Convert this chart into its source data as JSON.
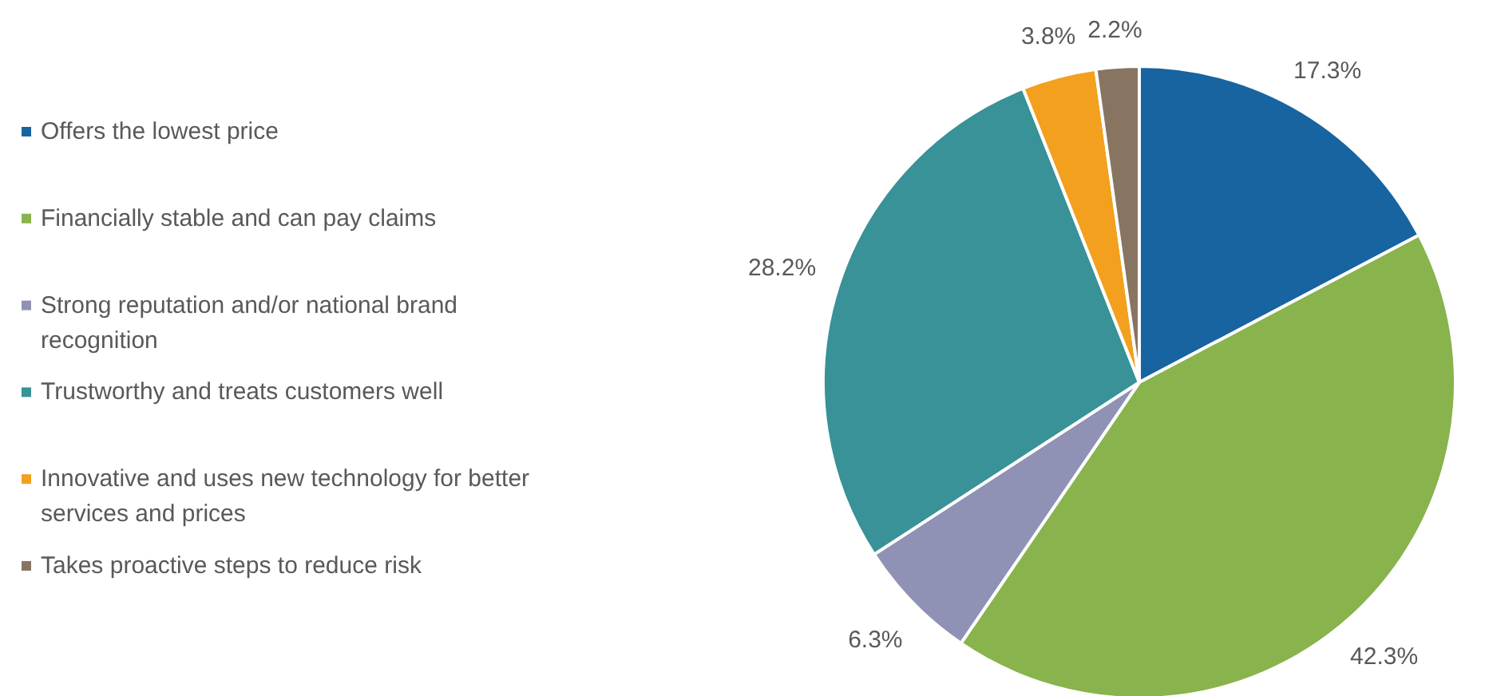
{
  "chart_data": {
    "type": "pie",
    "categories": [
      "Offers the lowest price",
      "Financially stable and can pay claims",
      "Strong reputation and/or national brand recognition",
      "Trustworthy and treats customers well",
      "Innovative and uses new technology for better services and prices",
      "Takes proactive steps to reduce risk"
    ],
    "values": [
      17.3,
      42.3,
      6.3,
      28.2,
      3.8,
      2.2
    ],
    "colors": [
      "#1764a0",
      "#88b34d",
      "#8f91b5",
      "#389297",
      "#f2a01e",
      "#877562"
    ],
    "value_labels": [
      "17.3%",
      "42.3%",
      "6.3%",
      "28.2%",
      "3.8%",
      "2.2%"
    ],
    "legend": "left"
  }
}
